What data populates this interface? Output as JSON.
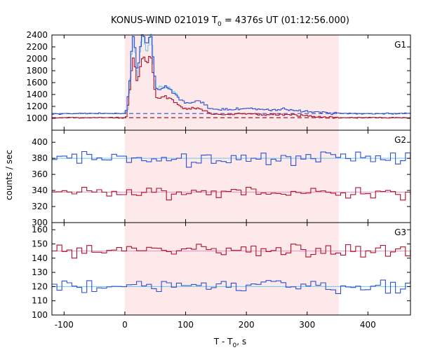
{
  "figure": {
    "title_main": "KONUS-WIND 021019 T",
    "title_sub": "0",
    "title_rest": " = 4376s UT (01:12:56.000)",
    "ylabel": "counts / sec",
    "xlabel_main": "T - T",
    "xlabel_sub": "0",
    "xlabel_rest": ", s"
  },
  "chart_data": [
    {
      "type": "line",
      "panel": "G1",
      "xlim": [
        -120,
        470
      ],
      "ylim": [
        800,
        2400
      ],
      "xticks": [
        -100,
        0,
        100,
        200,
        300,
        400
      ],
      "yticks": [
        1000,
        1200,
        1400,
        1600,
        1800,
        2000,
        2200,
        2400
      ],
      "highlight_x": [
        0,
        352
      ],
      "colors": {
        "blue": "#2e4fd2",
        "red": "#b01028",
        "cyan": "#6cc8ec",
        "pink": "#e890c4",
        "shade": "#fde8ea"
      },
      "background": {
        "blue": 1080,
        "red": 1010
      },
      "peaks": [
        {
          "t": 14,
          "blue": 2160,
          "red": 1870
        },
        {
          "t": 25,
          "blue": 1560,
          "red": 1390
        },
        {
          "t": 30,
          "blue": 1850,
          "red": 1600
        },
        {
          "t": 36,
          "blue": 1550,
          "red": 1400
        },
        {
          "t": 43,
          "blue": 2000,
          "red": 1760
        },
        {
          "t": 60,
          "blue": 1330,
          "red": 1210
        },
        {
          "t": 80,
          "blue": 1250,
          "red": 1150
        },
        {
          "t": 120,
          "blue": 1220,
          "red": 1120
        },
        {
          "t": 200,
          "blue": 1140,
          "red": 1060
        },
        {
          "t": 270,
          "blue": 1130,
          "red": 1060
        }
      ]
    },
    {
      "type": "line",
      "panel": "G2",
      "xlim": [
        -120,
        470
      ],
      "ylim": [
        300,
        415
      ],
      "xticks": [
        -100,
        0,
        100,
        200,
        300,
        400
      ],
      "yticks": [
        300,
        320,
        340,
        360,
        380,
        400
      ],
      "highlight_x": [
        0,
        352
      ],
      "colors": {
        "blue": "#2e4fd2",
        "red": "#b01028",
        "cyan": "#6cc8ec",
        "pink": "#e890c4",
        "shade": "#fde8ea"
      },
      "background": {
        "blue": 380,
        "red": 338
      },
      "noise": {
        "blue": 7,
        "red": 6
      }
    },
    {
      "type": "line",
      "panel": "G3",
      "xlim": [
        -120,
        470
      ],
      "ylim": [
        100,
        165
      ],
      "xticks": [
        -100,
        0,
        100,
        200,
        300,
        400
      ],
      "yticks": [
        100,
        110,
        120,
        130,
        140,
        150,
        160
      ],
      "highlight_x": [
        0,
        352
      ],
      "colors": {
        "blue": "#2e4fd2",
        "red": "#b01028",
        "cyan": "#6cc8ec",
        "pink": "#e890c4",
        "shade": "#fde8ea"
      },
      "background": {
        "blue": 120,
        "red": 145
      },
      "noise": {
        "blue": 4,
        "red": 4
      }
    }
  ]
}
